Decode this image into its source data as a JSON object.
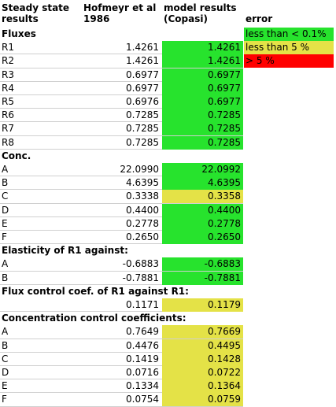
{
  "colors": {
    "green": "#27e32d",
    "yellow": "#e4e247",
    "red": "#ff0000"
  },
  "header": {
    "col1": "Steady state results",
    "col2": "Hofmeyr et al 1986",
    "col3": "model results (Copasi)",
    "col4": "error"
  },
  "legend": [
    {
      "text": "less than < 0.1%",
      "color": "green"
    },
    {
      "text": "less than 5 %",
      "color": "yellow"
    },
    {
      "text": "> 5 %",
      "color": "red"
    }
  ],
  "rows": [
    {
      "kind": "section",
      "label": "Fluxes"
    },
    {
      "kind": "data",
      "label": "R1",
      "ref": "1.4261",
      "model": "1.4261",
      "status": "green"
    },
    {
      "kind": "data",
      "label": "R2",
      "ref": "1.4261",
      "model": "1.4261",
      "status": "green"
    },
    {
      "kind": "data",
      "label": "R3",
      "ref": "0.6977",
      "model": "0.6977",
      "status": "green"
    },
    {
      "kind": "data",
      "label": "R4",
      "ref": "0.6977",
      "model": "0.6977",
      "status": "green"
    },
    {
      "kind": "data",
      "label": "R5",
      "ref": "0.6976",
      "model": "0.6977",
      "status": "green"
    },
    {
      "kind": "data",
      "label": "R6",
      "ref": "0.7285",
      "model": "0.7285",
      "status": "green"
    },
    {
      "kind": "data",
      "label": "R7",
      "ref": "0.7285",
      "model": "0.7285",
      "status": "green"
    },
    {
      "kind": "data",
      "label": "R8",
      "ref": "0.7285",
      "model": "0.7285",
      "status": "green"
    },
    {
      "kind": "section",
      "label": "Conc."
    },
    {
      "kind": "data",
      "label": "A",
      "ref": "22.0990",
      "model": "22.0992",
      "status": "green"
    },
    {
      "kind": "data",
      "label": "B",
      "ref": "4.6395",
      "model": "4.6395",
      "status": "green"
    },
    {
      "kind": "data",
      "label": "C",
      "ref": "0.3338",
      "model": "0.3358",
      "status": "yellow"
    },
    {
      "kind": "data",
      "label": "D",
      "ref": "0.4400",
      "model": "0.4400",
      "status": "green"
    },
    {
      "kind": "data",
      "label": "E",
      "ref": "0.2778",
      "model": "0.2778",
      "status": "green"
    },
    {
      "kind": "data",
      "label": "F",
      "ref": "0.2650",
      "model": "0.2650",
      "status": "green"
    },
    {
      "kind": "section",
      "label": "Elasticity of R1 against:"
    },
    {
      "kind": "data",
      "label": "A",
      "ref": "-0.6883",
      "model": "-0.6883",
      "status": "green"
    },
    {
      "kind": "data",
      "label": "B",
      "ref": "-0.7881",
      "model": "-0.7881",
      "status": "green"
    },
    {
      "kind": "section",
      "label": "Flux control coef. of R1 against R1:"
    },
    {
      "kind": "data",
      "label": "",
      "ref": "0.1171",
      "model": "0.1179",
      "status": "yellow"
    },
    {
      "kind": "section",
      "label": "Concentration control coefficients:"
    },
    {
      "kind": "data",
      "label": "A",
      "ref": "0.7649",
      "model": "0.7669",
      "status": "yellow"
    },
    {
      "kind": "data",
      "label": "B",
      "ref": "0.4476",
      "model": "0.4495",
      "status": "yellow"
    },
    {
      "kind": "data",
      "label": "C",
      "ref": "0.1419",
      "model": "0.1428",
      "status": "yellow"
    },
    {
      "kind": "data",
      "label": "D",
      "ref": "0.0716",
      "model": "0.0722",
      "status": "yellow"
    },
    {
      "kind": "data",
      "label": "E",
      "ref": "0.1334",
      "model": "0.1364",
      "status": "yellow"
    },
    {
      "kind": "data",
      "label": "F",
      "ref": "0.0754",
      "model": "0.0759",
      "status": "yellow"
    }
  ]
}
